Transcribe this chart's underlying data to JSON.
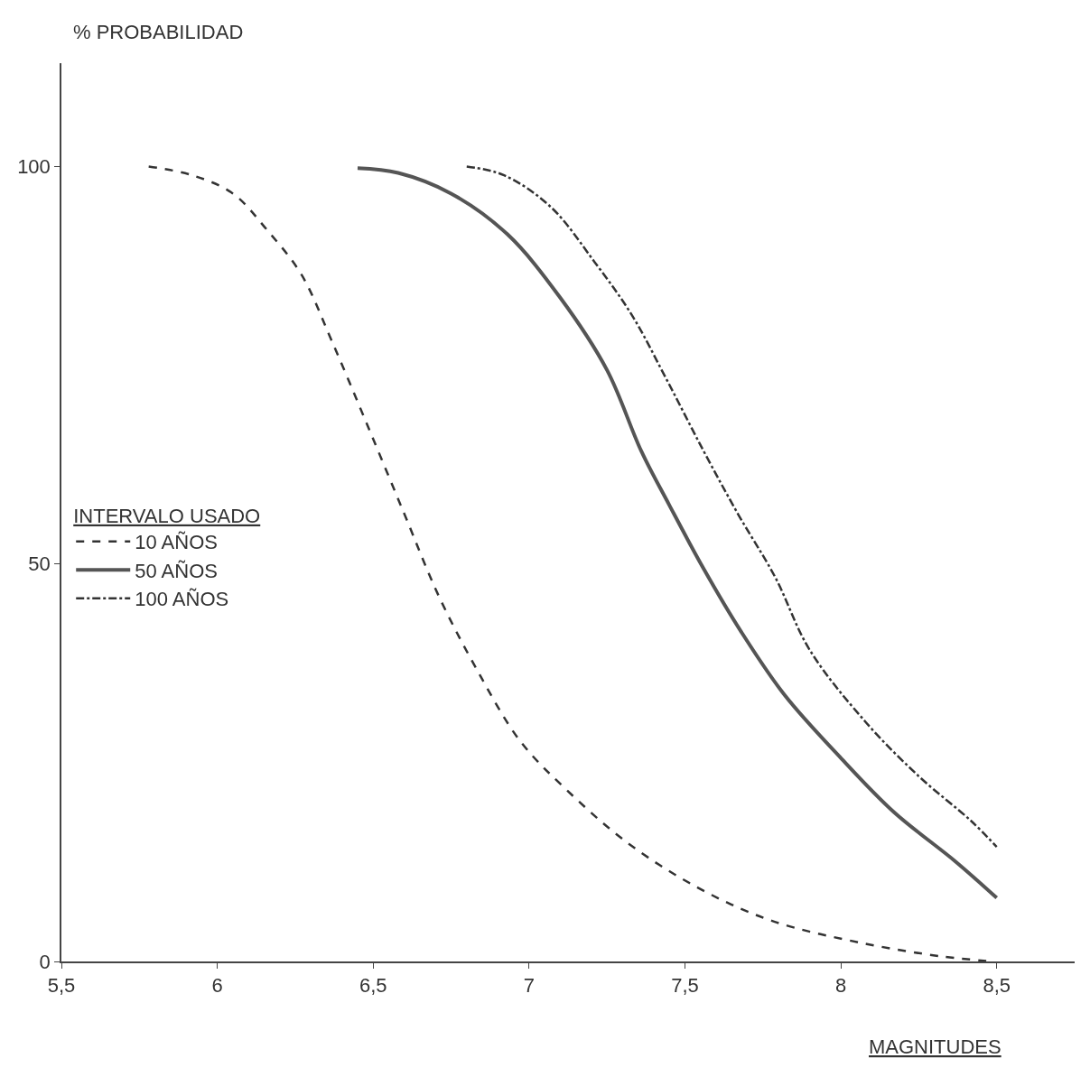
{
  "chart_data": {
    "type": "line",
    "xlabel": "MAGNITUDES",
    "ylabel": "% PROBABILIDAD",
    "legend_title": "INTERVALO USADO",
    "legend": "left",
    "marker": "none",
    "xlim": [
      5.5,
      8.75
    ],
    "ylim": [
      0,
      113
    ],
    "xticks": [
      {
        "value": 5.5,
        "label": "5,5"
      },
      6,
      {
        "value": 6.5,
        "label": "6,5"
      },
      7,
      {
        "value": 7.5,
        "label": "7,5"
      },
      8,
      {
        "value": 8.5,
        "label": "8,5"
      }
    ],
    "yticks": [
      0,
      50,
      100
    ],
    "series": [
      {
        "name": "10 AÑOS",
        "color": "#333333",
        "line_style": "dashed",
        "x": [
          5.78,
          5.92,
          6.05,
          6.16,
          6.27,
          6.37,
          6.48,
          6.6,
          6.71,
          6.83,
          6.97,
          7.12,
          7.32,
          7.55,
          7.78,
          8.07,
          8.33,
          8.49
        ],
        "values": [
          100,
          98.9,
          96.6,
          92,
          86.4,
          77.8,
          67.6,
          56.3,
          46,
          36.9,
          27.8,
          21.6,
          14.8,
          9.1,
          5.1,
          2.3,
          0.6,
          0
        ]
      },
      {
        "name": "50 AÑOS",
        "color": "#555555",
        "line_style": "solid",
        "x": [
          6.45,
          6.58,
          6.75,
          6.93,
          7.1,
          7.25,
          7.36,
          7.45,
          7.56,
          7.68,
          7.82,
          8.0,
          8.17,
          8.37,
          8.5
        ],
        "values": [
          99.8,
          99.2,
          96.6,
          91.5,
          83.5,
          74.4,
          64.2,
          57.4,
          49.4,
          41.5,
          33.5,
          25.6,
          18.8,
          12.5,
          8
        ]
      },
      {
        "name": "100 AÑOS",
        "color": "#333333",
        "line_style": "dashdot",
        "x": [
          6.8,
          6.92,
          7.07,
          7.21,
          7.33,
          7.44,
          7.56,
          7.67,
          7.79,
          7.9,
          8.08,
          8.25,
          8.42,
          8.5
        ],
        "values": [
          100,
          98.9,
          94.9,
          88,
          81.3,
          73.3,
          64.2,
          56.3,
          48.3,
          39.2,
          30.1,
          23.3,
          17.6,
          14.4
        ]
      }
    ]
  }
}
